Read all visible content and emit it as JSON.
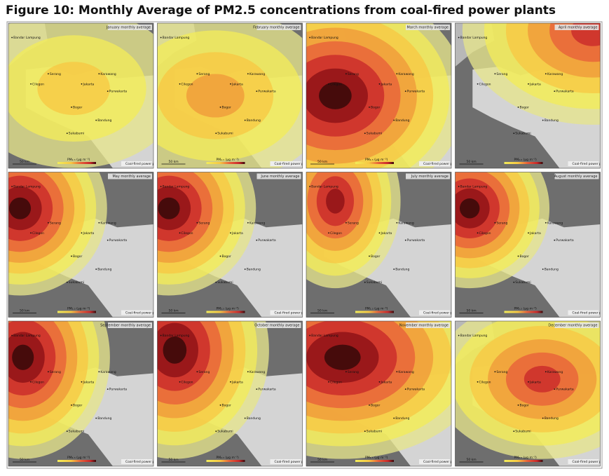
{
  "header": {
    "title": "Figure 10: Monthly Average of PM2.5 concentrations from coal-fired power plants"
  },
  "panels": [
    {
      "title": "January monthly average"
    },
    {
      "title": "February monthly average"
    },
    {
      "title": "March monthly average"
    },
    {
      "title": "April monthly average"
    },
    {
      "title": "May monthly average"
    },
    {
      "title": "June monthly average"
    },
    {
      "title": "July monthly average"
    },
    {
      "title": "August monthly average"
    },
    {
      "title": "September monthly average"
    },
    {
      "title": "October monthly average"
    },
    {
      "title": "November monthly average"
    },
    {
      "title": "December monthly average"
    }
  ],
  "map_labels": {
    "cities": [
      "Bandar Lampung",
      "Serang",
      "Cilegon",
      "Jakarta",
      "Bogor",
      "Purwakarta",
      "Karawang",
      "Sukabumi",
      "Bandung"
    ],
    "scale": "50 km",
    "legend_label": "PM₂.₅ (μg m⁻³)",
    "attribution": "Coal-fired power plant"
  }
}
